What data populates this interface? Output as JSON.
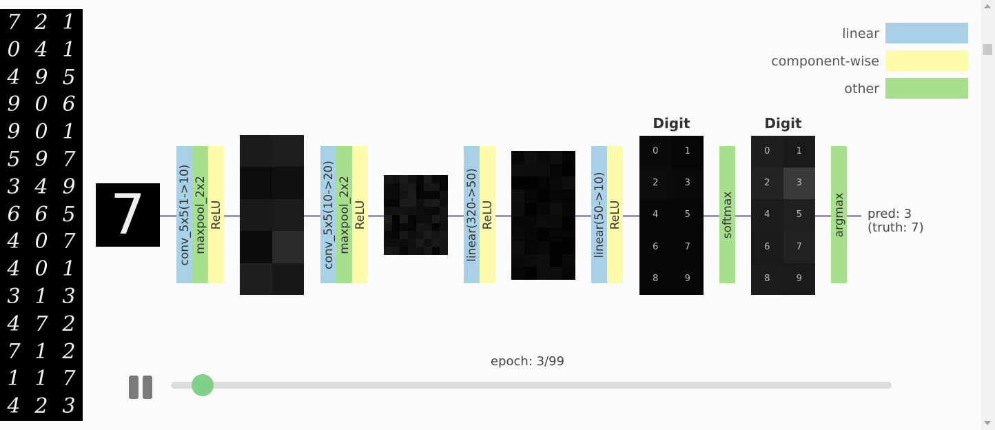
{
  "mnist_digits": [
    "7",
    "2",
    "1",
    "0",
    "4",
    "1",
    "4",
    "9",
    "5",
    "9",
    "0",
    "6",
    "9",
    "0",
    "1",
    "5",
    "9",
    "7",
    "3",
    "4",
    "9",
    "6",
    "6",
    "5",
    "4",
    "0",
    "7",
    "4",
    "0",
    "1",
    "3",
    "1",
    "3",
    "4",
    "7",
    "2",
    "7",
    "1",
    "2",
    "1",
    "1",
    "7",
    "4",
    "2",
    "3"
  ],
  "legend": {
    "linear": "linear",
    "component_wise": "component-wise",
    "other": "other",
    "colors": {
      "linear": "#a8d0e6",
      "component_wise": "#fbfbaa",
      "other": "#a7e08c"
    }
  },
  "input_digit": "7",
  "layers": {
    "conv1": "conv_5x5(1->10)",
    "pool1": "maxpool_2x2",
    "relu1": "ReLU",
    "conv2": "conv_5x5(10->20)",
    "pool2": "maxpool_2x2",
    "relu2": "ReLU",
    "linear1": "linear(320->50)",
    "relu3": "ReLU",
    "linear2": "linear(50->10)",
    "relu4": "ReLU",
    "softmax": "softmax",
    "argmax": "argmax"
  },
  "digit_grid_1": {
    "title": "Digit",
    "cells": [
      "0",
      "1",
      "2",
      "3",
      "4",
      "5",
      "6",
      "7",
      "8",
      "9"
    ]
  },
  "digit_grid_2": {
    "title": "Digit",
    "cells": [
      "0",
      "1",
      "2",
      "3",
      "4",
      "5",
      "6",
      "7",
      "8",
      "9"
    ]
  },
  "prediction": {
    "pred": "pred: 3",
    "truth": "(truth: 7)"
  },
  "player": {
    "epoch": "epoch: 3/99",
    "progress": 0.03
  }
}
